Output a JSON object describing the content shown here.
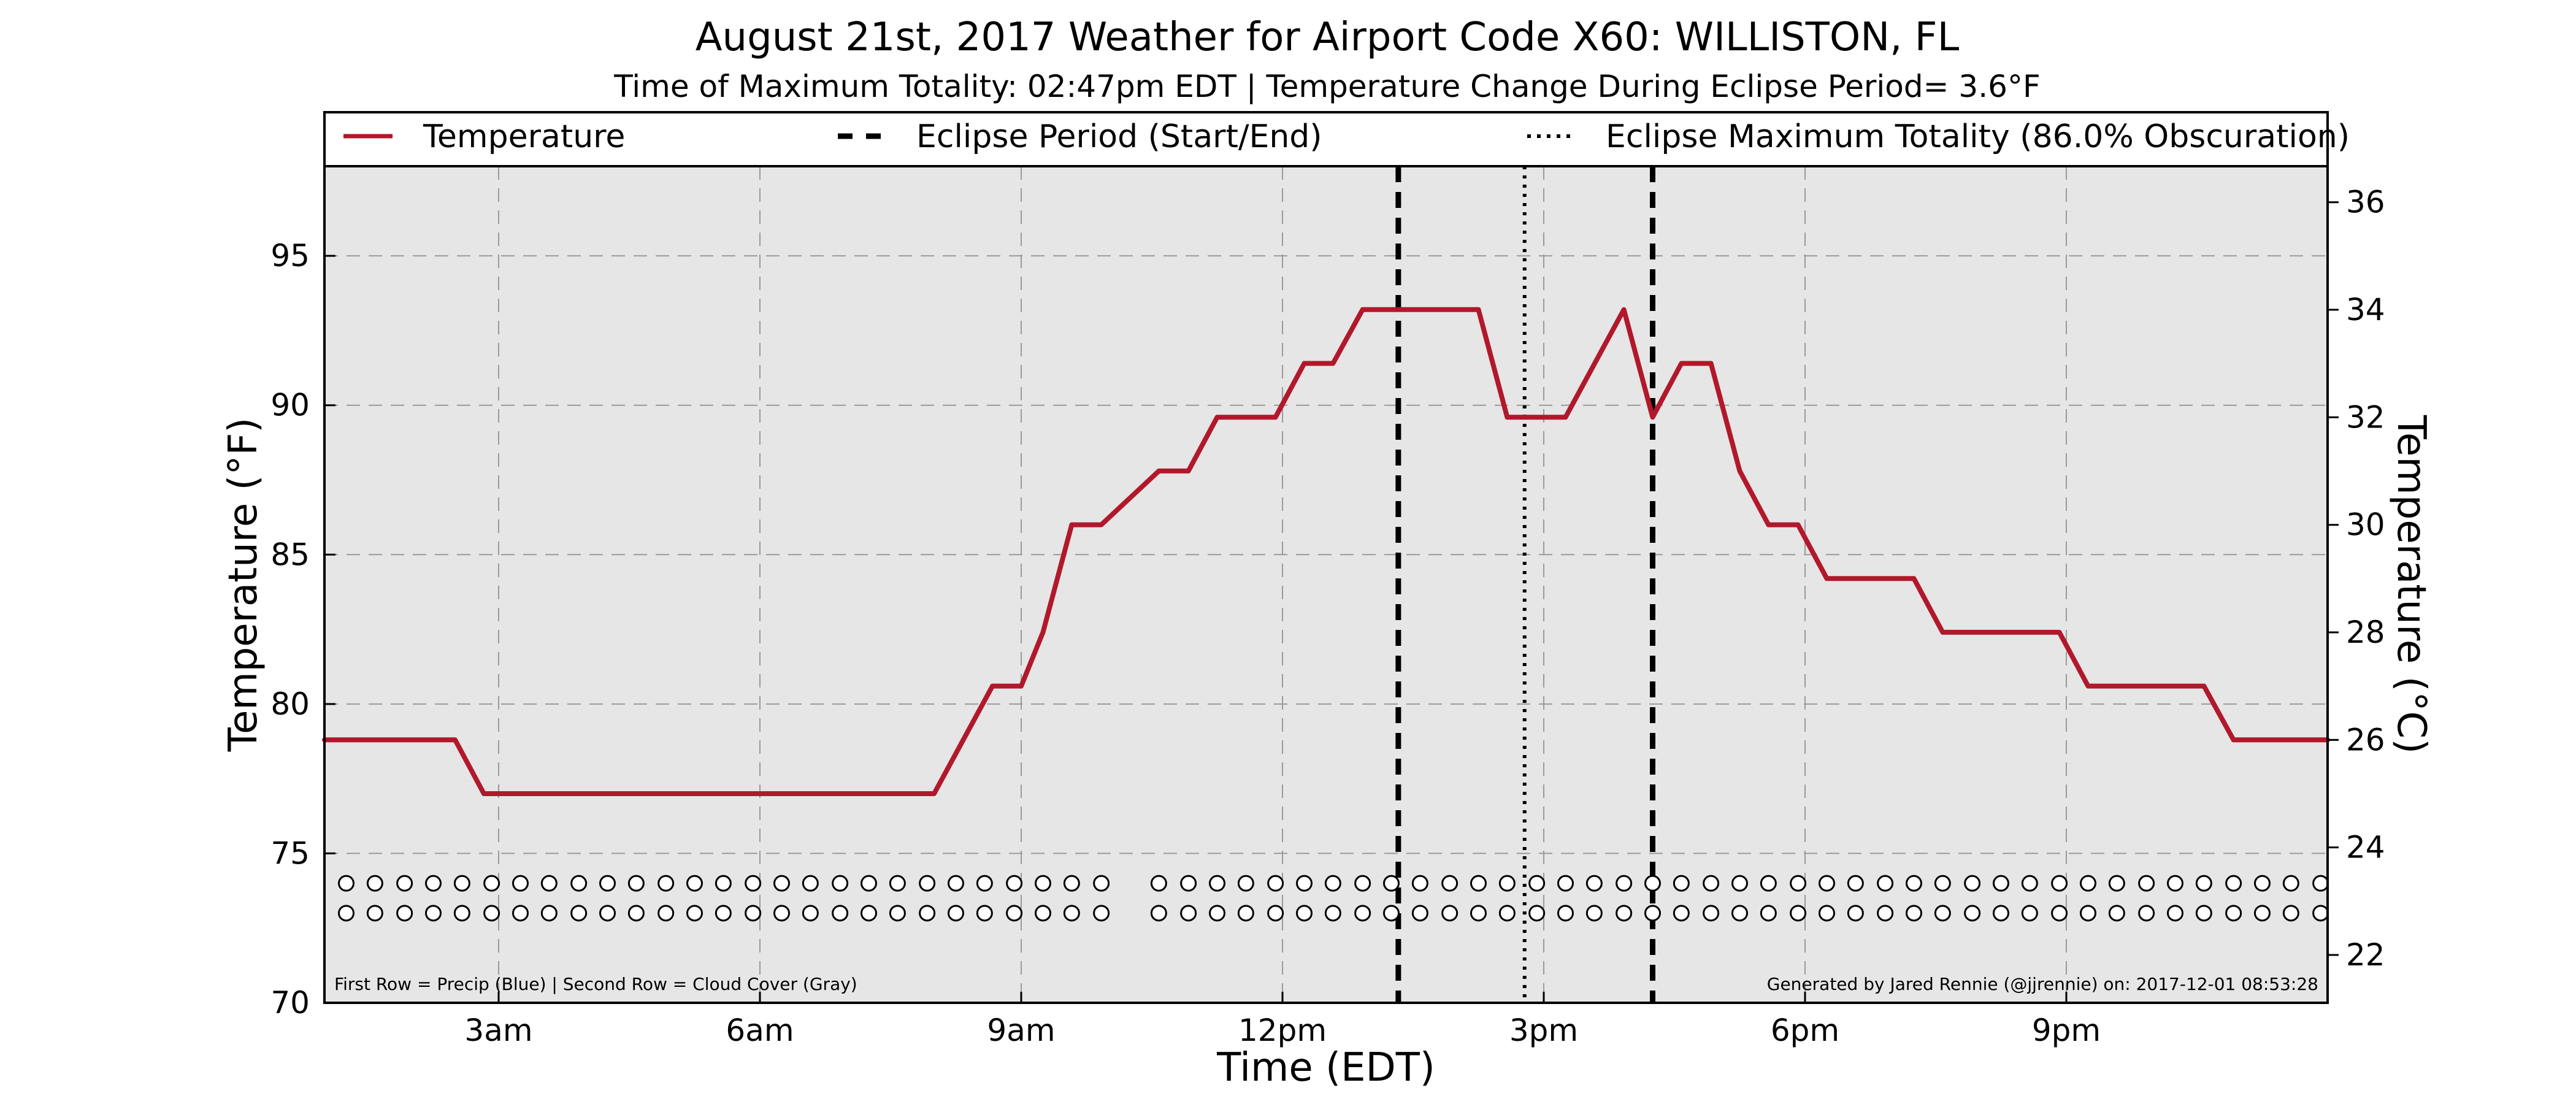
{
  "chart_data": {
    "type": "line",
    "title": "August 21st, 2017 Weather for Airport Code X60: WILLISTON, FL",
    "subtitle": "Time of Maximum Totality: 02:47pm EDT | Temperature Change During Eclipse Period= 3.6°F",
    "xlabel": "Time (EDT)",
    "ylabel": "Temperature (°F)",
    "ylabel_right": "Temperature (°C)",
    "xlim": [
      1.0,
      24.0
    ],
    "ylim": [
      70,
      98
    ],
    "ylim_right_celsius": [
      21.11,
      36.67
    ],
    "x_ticks": [
      {
        "x": 3,
        "label": "3am"
      },
      {
        "x": 6,
        "label": "6am"
      },
      {
        "x": 9,
        "label": "9am"
      },
      {
        "x": 12,
        "label": "12pm"
      },
      {
        "x": 15,
        "label": "3pm"
      },
      {
        "x": 18,
        "label": "6pm"
      },
      {
        "x": 21,
        "label": "9pm"
      }
    ],
    "y_ticks": [
      70,
      75,
      80,
      85,
      90,
      95
    ],
    "y_ticks_right": [
      22,
      24,
      26,
      28,
      30,
      32,
      34,
      36
    ],
    "grid": true,
    "legend_position": "top",
    "series": [
      {
        "name": "Temperature",
        "color": "#b2182b",
        "x": [
          1.0,
          2.5,
          2.83,
          8.0,
          8.67,
          9.0,
          9.25,
          9.58,
          9.92,
          10.58,
          10.92,
          11.25,
          11.92,
          12.25,
          12.58,
          12.92,
          13.25,
          14.25,
          14.58,
          14.92,
          15.25,
          15.92,
          16.25,
          16.58,
          16.92,
          17.25,
          17.58,
          17.92,
          18.25,
          19.25,
          19.58,
          20.92,
          21.25,
          22.58,
          22.92,
          24.0
        ],
        "values": [
          78.8,
          78.8,
          77.0,
          77.0,
          80.6,
          80.6,
          82.4,
          86.0,
          86.0,
          87.8,
          87.8,
          89.6,
          89.6,
          91.4,
          91.4,
          93.2,
          93.2,
          93.2,
          89.6,
          89.6,
          89.6,
          93.2,
          89.6,
          91.4,
          91.4,
          87.8,
          86.0,
          86.0,
          84.2,
          84.2,
          82.4,
          82.4,
          80.6,
          80.6,
          78.8,
          78.8
        ]
      }
    ],
    "eclipse_start": {
      "name": "Eclipse Period (Start/End)",
      "x": 13.33
    },
    "eclipse_end": {
      "x": 16.25
    },
    "eclipse_max": {
      "name": "Eclipse Maximum Totality (86.0% Obscuration)",
      "x": 14.78
    },
    "marker_rows": {
      "precip_y": 74.0,
      "cloud_y": 73.0,
      "x": [
        1.25,
        1.58,
        1.92,
        2.25,
        2.58,
        2.92,
        3.25,
        3.58,
        3.92,
        4.25,
        4.58,
        4.92,
        5.25,
        5.58,
        5.92,
        6.25,
        6.58,
        6.92,
        7.25,
        7.58,
        7.92,
        8.25,
        8.58,
        8.92,
        9.25,
        9.58,
        9.92,
        10.58,
        10.92,
        11.25,
        11.58,
        11.92,
        12.25,
        12.58,
        12.92,
        13.25,
        13.58,
        13.92,
        14.25,
        14.58,
        14.92,
        15.25,
        15.58,
        15.92,
        16.25,
        16.58,
        16.92,
        17.25,
        17.58,
        17.92,
        18.25,
        18.58,
        18.92,
        19.25,
        19.58,
        19.92,
        20.25,
        20.58,
        20.92,
        21.25,
        21.58,
        21.92,
        22.25,
        22.58,
        22.92,
        23.25,
        23.58,
        23.92
      ]
    },
    "footnote_left": "First Row = Precip (Blue) | Second Row = Cloud Cover (Gray)",
    "footnote_right": "Generated by Jared Rennie (@jjrennie) on: 2017-12-01 08:53:28"
  }
}
